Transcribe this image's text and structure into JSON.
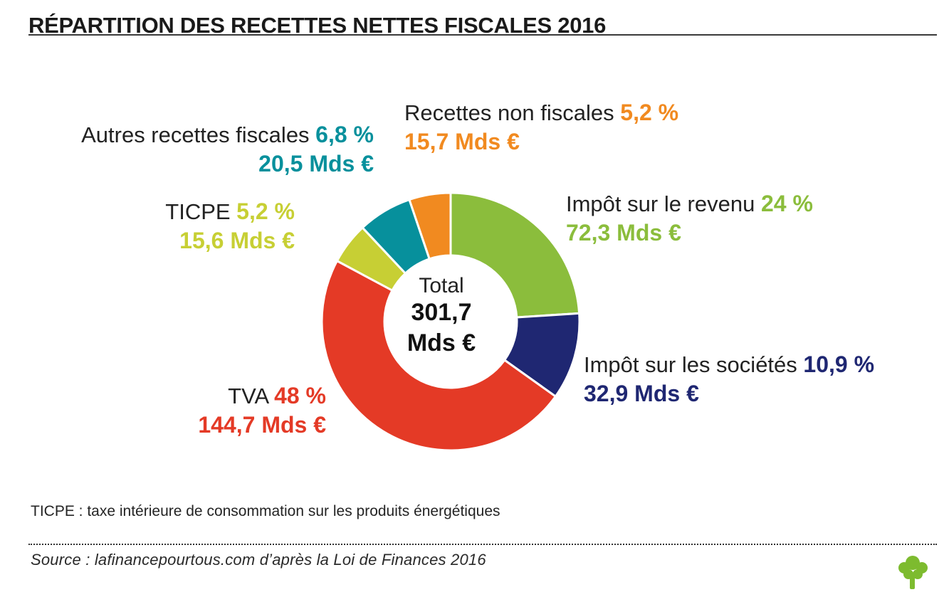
{
  "header": {
    "title": "RÉPARTITION DES RECETTES NETTES FISCALES 2016"
  },
  "chart_data": {
    "type": "pie",
    "center": {
      "label": "Total",
      "value_line_1": "301,7",
      "value_line_2": "Mds €"
    },
    "series": [
      {
        "name": "Impôt sur le revenu",
        "value_label": "24 %",
        "amount_label": "72,3 Mds €",
        "value": 24,
        "amount": 72.3,
        "color": "#8bbd3c"
      },
      {
        "name": "Impôt sur les sociétés",
        "value_label": "10,9 %",
        "amount_label": "32,9 Mds €",
        "value": 10.9,
        "amount": 32.9,
        "color": "#1f2772"
      },
      {
        "name": "TVA",
        "value_label": "48 %",
        "amount_label": "144,7 Mds €",
        "value": 48,
        "amount": 144.7,
        "color": "#e43a26"
      },
      {
        "name": "TICPE",
        "value_label": "5,2 %",
        "amount_label": "15,6 Mds €",
        "value": 5.2,
        "amount": 15.6,
        "color": "#c7cf34"
      },
      {
        "name": "Autres recettes fiscales",
        "value_label": "6,8 %",
        "amount_label": "20,5 Mds €",
        "value": 6.8,
        "amount": 20.5,
        "color": "#07909c"
      },
      {
        "name": "Recettes non fiscales",
        "value_label": "5,2 %",
        "amount_label": "15,7 Mds €",
        "value": 5.2,
        "amount": 15.7,
        "color": "#f18a20"
      }
    ],
    "legend_position": "labels around donut"
  },
  "footer": {
    "note": "TICPE : taxe intérieure de consommation sur les produits énergétiques",
    "source": "Source : lafinancepourtous.com d’après la Loi de Finances 2016"
  },
  "brand": {
    "logo_icon": "tree-icon",
    "logo_color": "#7dbb2f"
  }
}
